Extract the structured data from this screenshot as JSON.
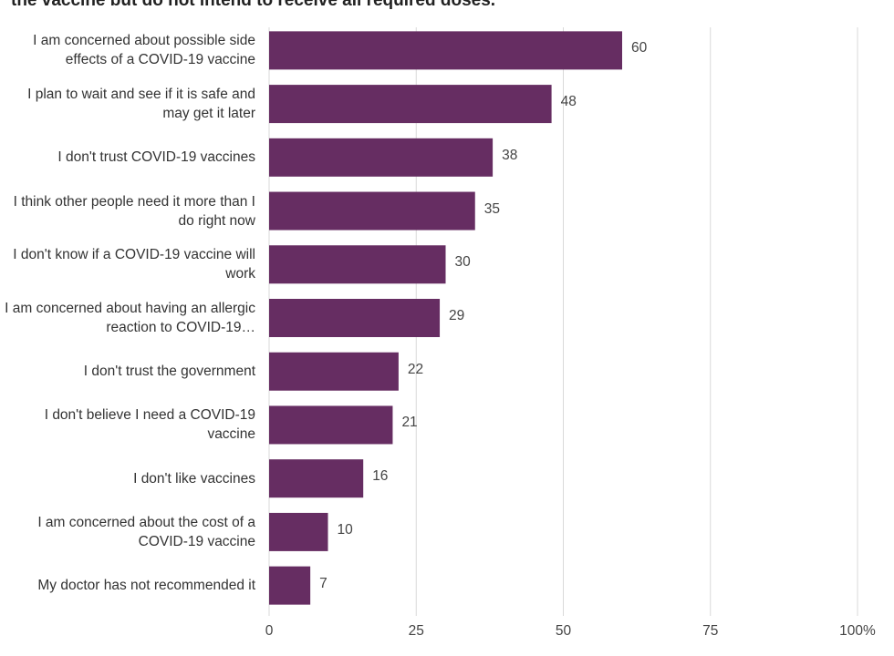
{
  "chart_data": {
    "type": "bar",
    "orientation": "horizontal",
    "title": "the vaccine but do not intend to receive all required doses.",
    "categories": [
      "I am concerned about possible side effects of a COVID-19 vaccine",
      "I plan to wait and see if it is safe and may get it later",
      "I don't trust COVID-19 vaccines",
      "I think other people need it more than I do right now",
      "I don't know if a COVID-19 vaccine will work",
      "I am concerned about having an allergic reaction to COVID-19…",
      "I don't trust the government",
      "I don't believe I need a COVID-19 vaccine",
      "I don't like vaccines",
      "I am concerned about the cost of a COVID-19 vaccine",
      "My doctor has not recommended it"
    ],
    "values": [
      60,
      48,
      38,
      35,
      30,
      29,
      22,
      21,
      16,
      10,
      7
    ],
    "color": "#662d62",
    "xlim": [
      0,
      100
    ],
    "xticks": [
      0,
      25,
      50,
      75,
      {
        "value": 100,
        "label": "100%"
      }
    ],
    "grid": true
  }
}
